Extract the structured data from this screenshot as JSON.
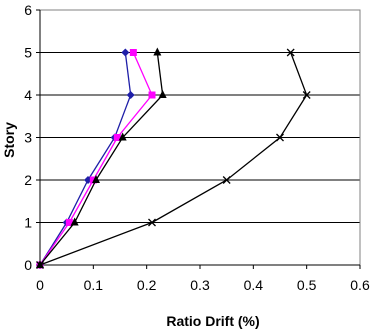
{
  "chart_data": {
    "type": "line",
    "title": "",
    "xlabel": "Ratio Drift (%)",
    "ylabel": "Story",
    "xlim": [
      0,
      0.6
    ],
    "ylim": [
      0,
      6
    ],
    "x_ticks": [
      "0",
      "0.1",
      "0.2",
      "0.3",
      "0.4",
      "0.5",
      "0.6"
    ],
    "y_ticks": [
      "0",
      "1",
      "2",
      "3",
      "4",
      "5",
      "6"
    ],
    "grid": "horizontal",
    "legend": "none",
    "y": [
      0,
      1,
      2,
      3,
      4,
      5
    ],
    "series": [
      {
        "marker": "diamond",
        "color": "#1f1fa8",
        "x": [
          0,
          0.05,
          0.09,
          0.14,
          0.17,
          0.16
        ]
      },
      {
        "marker": "square",
        "color": "#ff00ff",
        "x": [
          0,
          0.055,
          0.1,
          0.145,
          0.21,
          0.175
        ]
      },
      {
        "marker": "triangle",
        "color": "#000000",
        "x": [
          0,
          0.065,
          0.105,
          0.155,
          0.23,
          0.22
        ]
      },
      {
        "marker": "x",
        "color": "#000000",
        "x": [
          0,
          0.21,
          0.35,
          0.45,
          0.5,
          0.47
        ]
      }
    ]
  }
}
